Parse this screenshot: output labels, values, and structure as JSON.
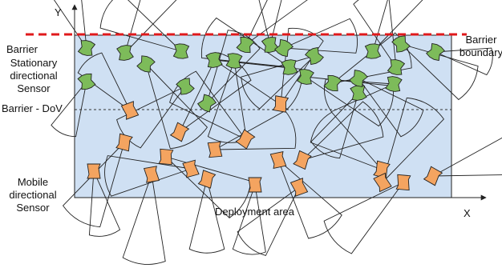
{
  "labels": {
    "y_axis": "Y",
    "x_axis": "X",
    "barrier": "Barrier",
    "barrier_boundary_line1": "Barrier",
    "barrier_boundary_line2": "boundary",
    "stationary_line1": "Stationary",
    "stationary_line2": "directional",
    "stationary_line3": "Sensor",
    "barrier_dov": "Barrier - DoV",
    "mobile_line1": "Mobile",
    "mobile_line2": "directional",
    "mobile_line3": "Sensor",
    "deployment_area": "Deployment area"
  },
  "colors": {
    "area_fill": "#cfe0f3",
    "barrier_line": "#e0191b",
    "stationary_sensor": "#7dbb5a",
    "mobile_sensor": "#f4a460",
    "outline": "#222222"
  }
}
